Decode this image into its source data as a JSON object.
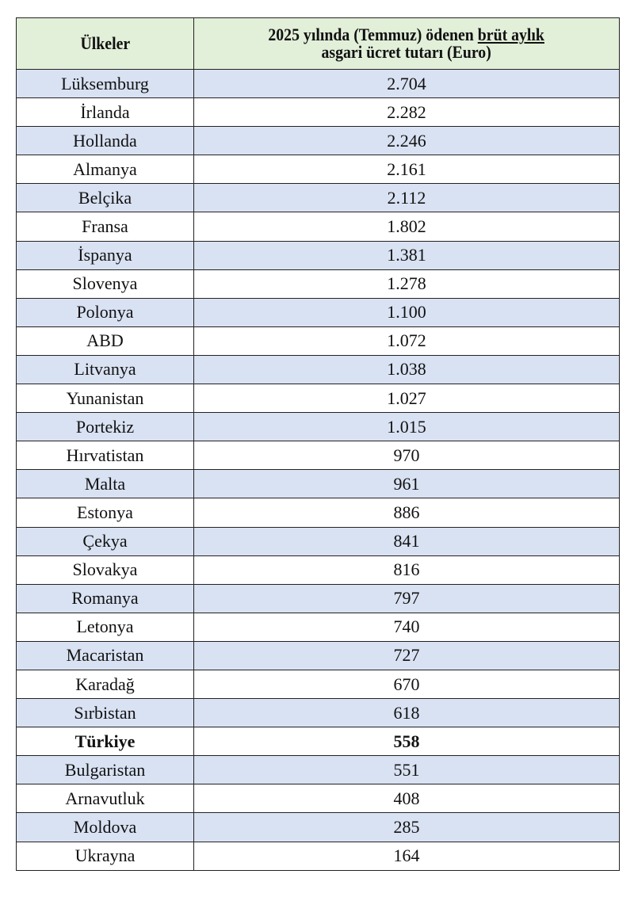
{
  "table": {
    "header": {
      "country": "Ülkeler",
      "value_part1": "2025 yılında (Temmuz) ödenen ",
      "value_underlined": "brüt aylık",
      "value_part2": "asgari ücret tutarı (Euro)"
    },
    "header_color": "#e2efd9",
    "stripe_color": "#d9e2f3",
    "highlight_row": "Türkiye",
    "rows": [
      {
        "country": "Lüksemburg",
        "value": "2.704"
      },
      {
        "country": "İrlanda",
        "value": "2.282"
      },
      {
        "country": "Hollanda",
        "value": "2.246"
      },
      {
        "country": "Almanya",
        "value": "2.161"
      },
      {
        "country": "Belçika",
        "value": "2.112"
      },
      {
        "country": "Fransa",
        "value": "1.802"
      },
      {
        "country": "İspanya",
        "value": "1.381"
      },
      {
        "country": "Slovenya",
        "value": "1.278"
      },
      {
        "country": "Polonya",
        "value": "1.100"
      },
      {
        "country": "ABD",
        "value": "1.072"
      },
      {
        "country": "Litvanya",
        "value": "1.038"
      },
      {
        "country": "Yunanistan",
        "value": "1.027"
      },
      {
        "country": "Portekiz",
        "value": "1.015"
      },
      {
        "country": "Hırvatistan",
        "value": "970"
      },
      {
        "country": "Malta",
        "value": "961"
      },
      {
        "country": "Estonya",
        "value": "886"
      },
      {
        "country": "Çekya",
        "value": "841"
      },
      {
        "country": "Slovakya",
        "value": "816"
      },
      {
        "country": "Romanya",
        "value": "797"
      },
      {
        "country": "Letonya",
        "value": "740"
      },
      {
        "country": "Macaristan",
        "value": "727"
      },
      {
        "country": "Karadağ",
        "value": "670"
      },
      {
        "country": "Sırbistan",
        "value": "618"
      },
      {
        "country": "Türkiye",
        "value": "558"
      },
      {
        "country": "Bulgaristan",
        "value": "551"
      },
      {
        "country": "Arnavutluk",
        "value": "408"
      },
      {
        "country": "Moldova",
        "value": "285"
      },
      {
        "country": "Ukrayna",
        "value": "164"
      }
    ]
  }
}
